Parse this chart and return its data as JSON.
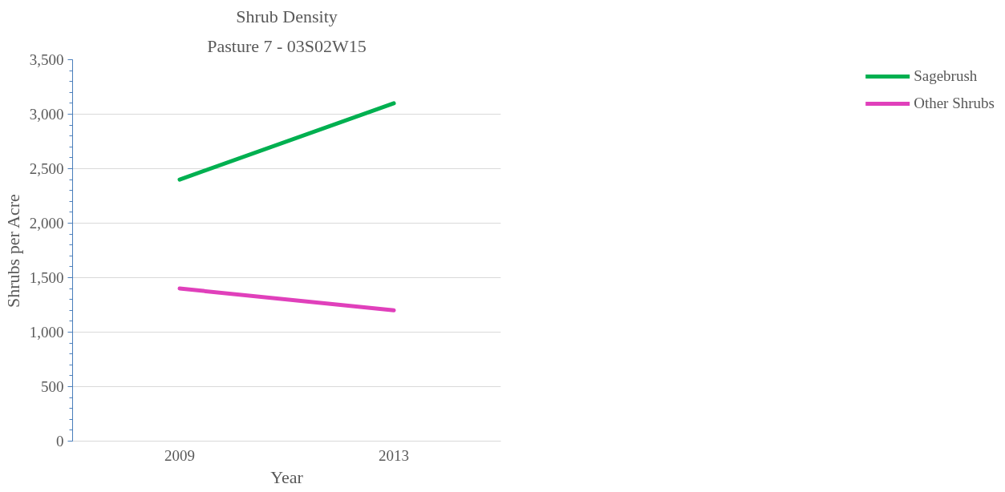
{
  "chart_data": {
    "type": "line",
    "title": "Shrub Density",
    "subtitle": "Pasture 7 - 03S02W15",
    "xlabel": "Year",
    "ylabel": "Shrubs per Acre",
    "categories": [
      "2009",
      "2013"
    ],
    "series": [
      {
        "name": "Sagebrush",
        "color": "#00b050",
        "values": [
          2400,
          3100
        ]
      },
      {
        "name": "Other Shrubs",
        "color": "#e040bb",
        "values": [
          1400,
          1200
        ]
      }
    ],
    "ylim": [
      0,
      3500
    ],
    "yticks": [
      {
        "value": 0,
        "label": "0"
      },
      {
        "value": 500,
        "label": "500"
      },
      {
        "value": 1000,
        "label": "1,000"
      },
      {
        "value": 1500,
        "label": "1,500"
      },
      {
        "value": 2000,
        "label": "2,000"
      },
      {
        "value": 2500,
        "label": "2,500"
      },
      {
        "value": 3000,
        "label": "3,000"
      },
      {
        "value": 3500,
        "label": "3,500"
      }
    ],
    "grid": "y",
    "legend": "right",
    "line_style": "solid"
  }
}
